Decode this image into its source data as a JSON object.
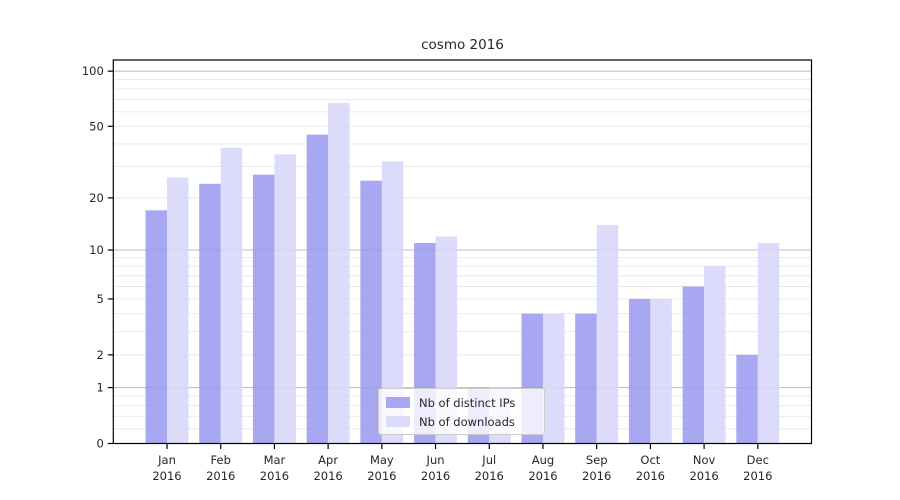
{
  "figure": {
    "background": "#ffffff"
  },
  "chart_data": {
    "type": "bar",
    "title": "cosmo 2016",
    "xlabel": "",
    "ylabel": "",
    "categories": [
      "Jan",
      "Feb",
      "Mar",
      "Apr",
      "May",
      "Jun",
      "Jul",
      "Aug",
      "Sep",
      "Oct",
      "Nov",
      "Dec"
    ],
    "year_label": "2016",
    "series": [
      {
        "name": "Nb of distinct IPs",
        "color": "#9898f0",
        "values": [
          17,
          24,
          27,
          45,
          25,
          11,
          1,
          4,
          4,
          5,
          6,
          2
        ]
      },
      {
        "name": "Nb of downloads",
        "color": "#d6d6f9",
        "values": [
          26,
          38,
          35,
          67,
          32,
          12,
          1,
          4,
          14,
          5,
          8,
          11
        ]
      }
    ],
    "yscale": "log10(1+x)",
    "ylim": [
      0,
      115
    ],
    "yticks": [
      0,
      1,
      2,
      5,
      10,
      20,
      50,
      100
    ],
    "major_gridlines": [
      1,
      10,
      100
    ],
    "minor_gridlines": [
      0.2,
      0.4,
      0.6,
      0.8,
      2,
      3,
      4,
      5,
      6,
      7,
      8,
      9,
      20,
      30,
      40,
      50,
      60,
      70,
      80,
      90
    ],
    "grid": true,
    "bar_opacity": 0.85,
    "legend_position": "lower center"
  },
  "colors": {
    "axis": "#000000",
    "grid_major": "#bcbcbc",
    "grid_minor": "#e8e8e8",
    "text": "#262626",
    "background": "#ffffff"
  }
}
